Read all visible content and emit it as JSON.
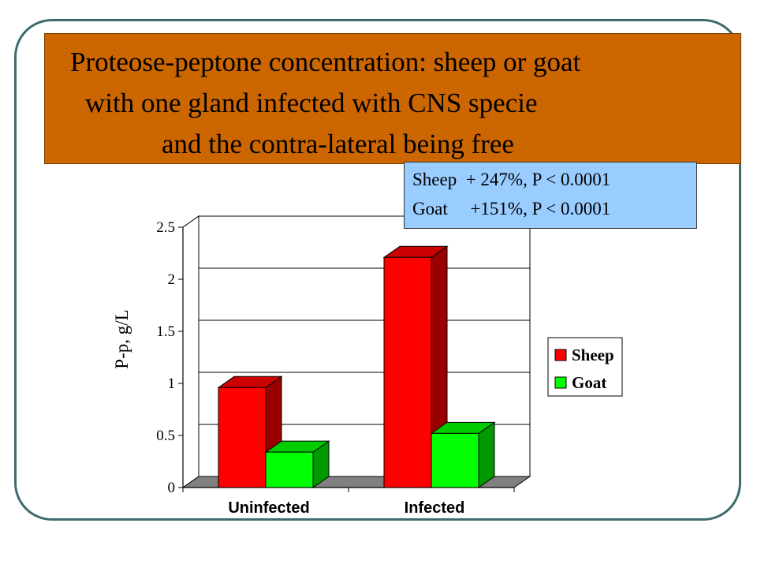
{
  "title_lines": [
    "Proteose-peptone concentration: sheep or goat",
    "with one gland infected with CNS specie",
    "and the contra-lateral being free"
  ],
  "stats": {
    "sheep": "Sheep  + 247%, P < 0.0001",
    "goat": "Goat     +151%, P < 0.0001"
  },
  "colors": {
    "title_bg": "#cc6600",
    "stat_bg": "#99ccff",
    "frame": "#3d6b6e",
    "sheep": "#ff0000",
    "goat": "#00ff00"
  },
  "chart_data": {
    "type": "bar",
    "categories": [
      "Uninfected",
      "Infected"
    ],
    "series": [
      {
        "name": "Sheep",
        "values": [
          0.96,
          2.21
        ],
        "color": "#ff0000",
        "side": "#990000",
        "top": "#cc0000"
      },
      {
        "name": "Goat",
        "values": [
          0.34,
          0.52
        ],
        "color": "#00ff00",
        "side": "#009900",
        "top": "#00cc00"
      }
    ],
    "ylabel": "P-p, g/L",
    "xlabel": "",
    "ylim": [
      0,
      2.5
    ],
    "yticks": [
      0,
      0.5,
      1,
      1.5,
      2,
      2.5
    ],
    "ytick_labels": [
      "0",
      "0.5",
      "1",
      "1.5",
      "2",
      "2.5"
    ],
    "grid": true,
    "legend_position": "right",
    "style": "3d"
  }
}
